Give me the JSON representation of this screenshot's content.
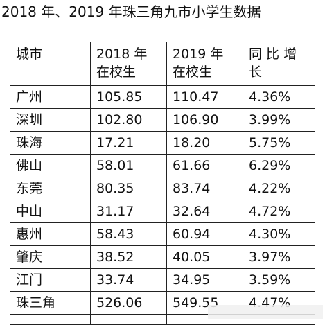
{
  "title": "2018 年、2019 年珠三角九市小学生数据",
  "headers": {
    "city": "城市",
    "y2018": [
      "2018  年",
      "在校生"
    ],
    "y2019": [
      "2019  年",
      "在校生"
    ],
    "growth": [
      "同 比 增",
      "长"
    ]
  },
  "rows": [
    {
      "city": "广州",
      "y2018": "105.85",
      "y2019": "110.47",
      "growth": "4.36%"
    },
    {
      "city": "深圳",
      "y2018": "102.80",
      "y2019": "106.90",
      "growth": "3.99%"
    },
    {
      "city": "珠海",
      "y2018": "17.21",
      "y2019": "18.20",
      "growth": "5.75%"
    },
    {
      "city": "佛山",
      "y2018": "58.01",
      "y2019": "61.66",
      "growth": "6.29%"
    },
    {
      "city": "东莞",
      "y2018": "80.35",
      "y2019": "83.74",
      "growth": "4.22%"
    },
    {
      "city": "中山",
      "y2018": "31.17",
      "y2019": "32.64",
      "growth": "4.72%"
    },
    {
      "city": "惠州",
      "y2018": "58.43",
      "y2019": "60.94",
      "growth": "4.30%"
    },
    {
      "city": "肇庆",
      "y2018": "38.52",
      "y2019": "40.05",
      "growth": "3.97%"
    },
    {
      "city": "江门",
      "y2018": "33.74",
      "y2019": "34.95",
      "growth": "3.59%"
    },
    {
      "city": "珠三角",
      "y2018": "526.06",
      "y2019": "549.55",
      "growth": "4.47%"
    }
  ]
}
